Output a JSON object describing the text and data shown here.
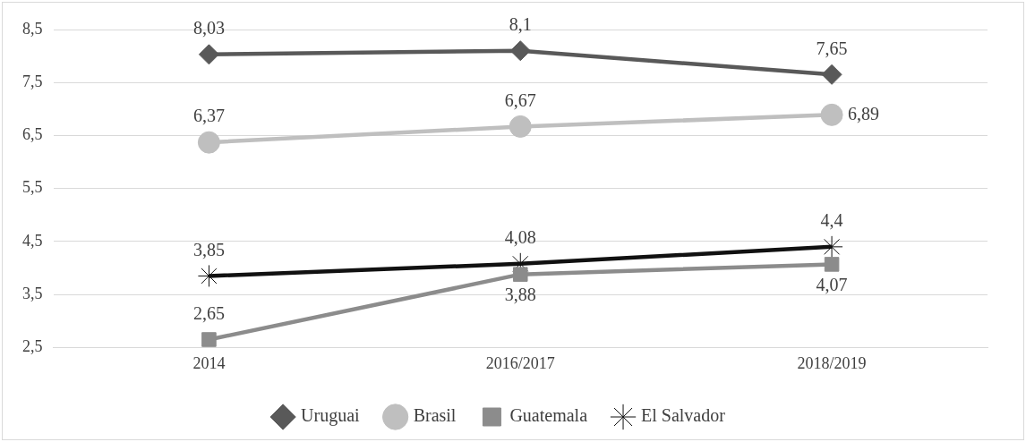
{
  "chart_data": {
    "type": "line",
    "categories": [
      "2014",
      "2016/2017",
      "2018/2019"
    ],
    "ylim": [
      2.5,
      8.5
    ],
    "yticks": [
      {
        "value": 2.5,
        "label": "2,5"
      },
      {
        "value": 3.5,
        "label": "3,5"
      },
      {
        "value": 4.5,
        "label": "4,5"
      },
      {
        "value": 5.5,
        "label": "5,5"
      },
      {
        "value": 6.5,
        "label": "6,5"
      },
      {
        "value": 7.5,
        "label": "7,5"
      },
      {
        "value": 8.5,
        "label": "8,5"
      }
    ],
    "grid": "y",
    "legend": "bottom",
    "line_style": "solid",
    "series": [
      {
        "name": "Uruguai",
        "color": "#595959",
        "marker": "diamond",
        "values": [
          8.03,
          8.1,
          7.65
        ],
        "value_labels": [
          "8,03",
          "8,1",
          "7,65"
        ]
      },
      {
        "name": "Brasil",
        "color": "#bfbfbf",
        "marker": "circle",
        "values": [
          6.37,
          6.67,
          6.89
        ],
        "value_labels": [
          "6,37",
          "6,67",
          "6,89"
        ]
      },
      {
        "name": "Guatemala",
        "color": "#8c8c8c",
        "marker": "square",
        "values": [
          2.65,
          3.88,
          4.07
        ],
        "value_labels": [
          "2,65",
          "3,88",
          "4,07"
        ]
      },
      {
        "name": "El Salvador",
        "color": "#111111",
        "marker": "cross",
        "values": [
          3.85,
          4.08,
          4.4
        ],
        "value_labels": [
          "3,85",
          "4,08",
          "4,4"
        ]
      }
    ]
  }
}
